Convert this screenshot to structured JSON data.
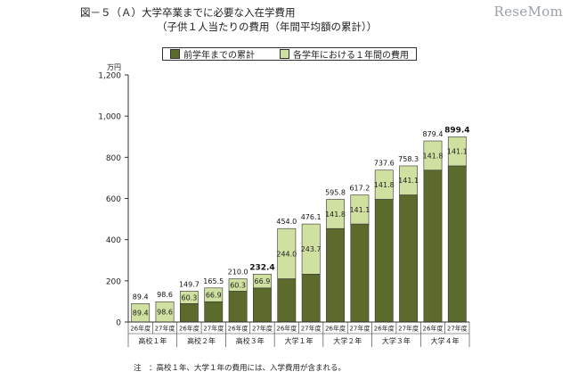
{
  "watermark": "ReseMom",
  "note": "注　：高校１年、大学１年の費用には、入学費用が含まれる。",
  "chart_data": {
    "type": "bar",
    "stacked": true,
    "title": "図－５（Ａ）大学卒業までに必要な入在学費用",
    "subtitle": "（子供１人当たりの費用（年間平均額の累計））",
    "ylabel_unit": "万円",
    "ylim": [
      0,
      1200
    ],
    "yticks": [
      0,
      200,
      400,
      600,
      800,
      "1,000",
      "1,200"
    ],
    "yticks_values": [
      0,
      200,
      400,
      600,
      800,
      1000,
      1200
    ],
    "categories": [
      "26年度",
      "27年度",
      "26年度",
      "27年度",
      "26年度",
      "27年度",
      "26年度",
      "27年度",
      "26年度",
      "27年度",
      "26年度",
      "27年度",
      "26年度",
      "27年度"
    ],
    "groups": [
      "高校１年",
      "高校２年",
      "高校３年",
      "大学１年",
      "大学２年",
      "大学３年",
      "大学４年"
    ],
    "series": [
      {
        "name": "前学年までの累計",
        "color": "#5c6b2c",
        "values": [
          0,
          0,
          89.4,
          98.6,
          149.7,
          165.5,
          210.0,
          232.4,
          454.0,
          476.1,
          595.8,
          617.2,
          737.6,
          758.3
        ]
      },
      {
        "name": "各学年における１年間の費用",
        "color": "#cfe0a0",
        "values": [
          89.4,
          98.6,
          60.3,
          66.9,
          60.3,
          66.9,
          244.0,
          243.7,
          141.8,
          141.1,
          141.8,
          141.1,
          141.8,
          141.1
        ]
      }
    ],
    "totals": [
      89.4,
      98.6,
      149.7,
      165.5,
      210.0,
      232.4,
      454.0,
      476.1,
      595.8,
      617.2,
      737.6,
      758.3,
      879.4,
      899.4
    ],
    "total_labels": [
      "89.4",
      "98.6",
      "149.7",
      "165.5",
      "210.0",
      "232.4",
      "454.0",
      "476.1",
      "595.8",
      "617.2",
      "737.6",
      "758.3",
      "879.4",
      "899.4"
    ],
    "segment_labels": [
      "89.4",
      "98.6",
      "60.3",
      "66.9",
      "60.3",
      "66.9",
      "244.0",
      "243.7",
      "141.8",
      "141.1",
      "141.8",
      "141.1",
      "141.8",
      "141.1"
    ],
    "bold_totals": [
      5,
      13
    ],
    "grid": false,
    "legend_position": "top-center"
  }
}
